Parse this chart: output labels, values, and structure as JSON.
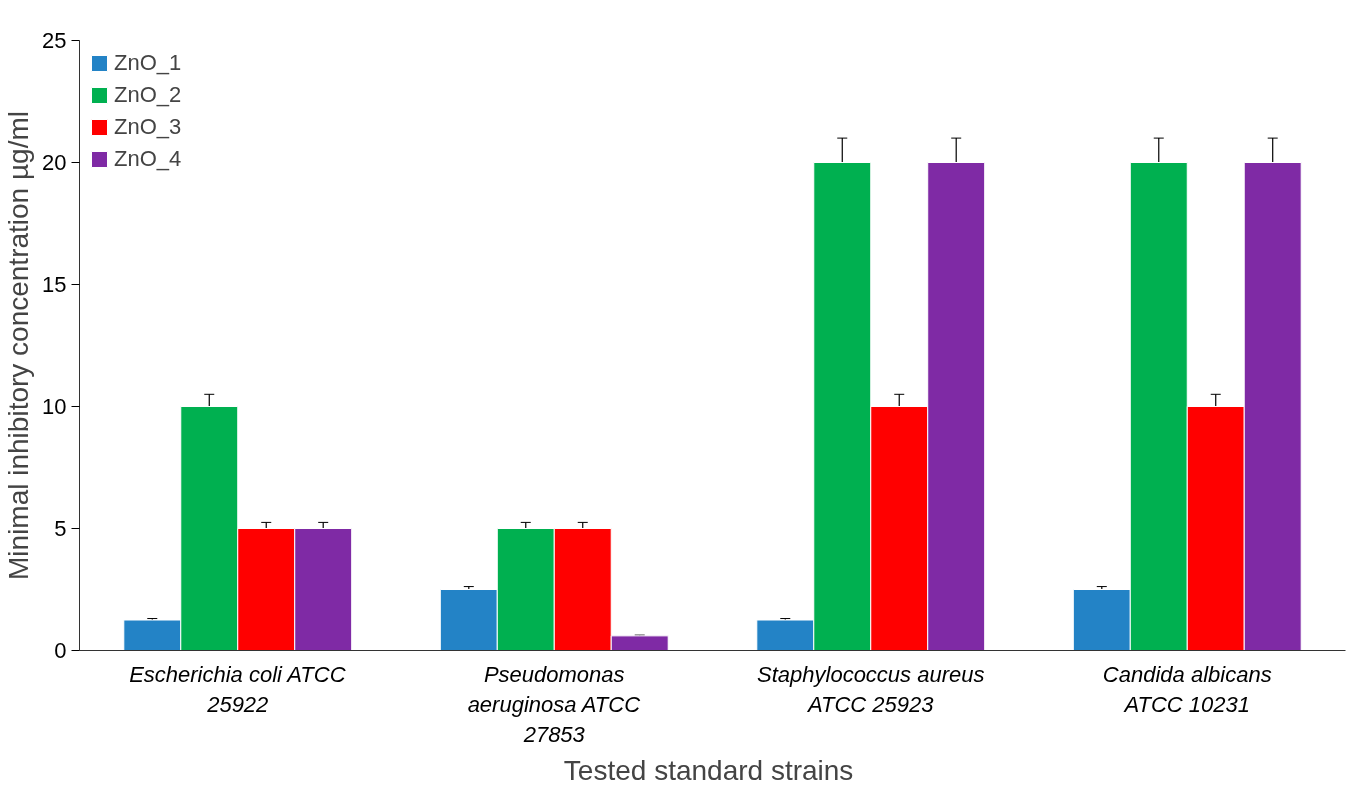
{
  "chart_data": {
    "type": "bar",
    "xlabel": "Tested  standard strains",
    "ylabel": "Minimal inhibitory concentration µg/ml",
    "categories": [
      "Escherichia coli ATCC\n25922",
      "Pseudomonas\naeruginosa ATCC\n27853",
      "Staphylococcus aureus\nATCC 25923",
      "Candida albicans\nATCC 10231"
    ],
    "series": [
      {
        "name": "ZnO_1",
        "color": "#2383c6",
        "values": [
          1.25,
          2.5,
          1.25,
          2.5
        ],
        "errors": [
          0.06,
          0.12,
          0.06,
          0.12
        ]
      },
      {
        "name": "ZnO_2",
        "color": "#00b050",
        "values": [
          10,
          5,
          20,
          20
        ],
        "errors": [
          0.5,
          0.25,
          1,
          1
        ]
      },
      {
        "name": "ZnO_3",
        "color": "#ff0000",
        "values": [
          5,
          5,
          10,
          10
        ],
        "errors": [
          0.25,
          0.25,
          0.5,
          0.5
        ]
      },
      {
        "name": "ZnO_4",
        "color": "#7f2aa5",
        "values": [
          5,
          0.6,
          20,
          20
        ],
        "errors": [
          0.25,
          0.03,
          1,
          1
        ]
      }
    ],
    "ylim": [
      0,
      25
    ],
    "yticks": [
      0,
      5,
      10,
      15,
      20,
      25
    ],
    "grid": false,
    "legend": "top left"
  }
}
